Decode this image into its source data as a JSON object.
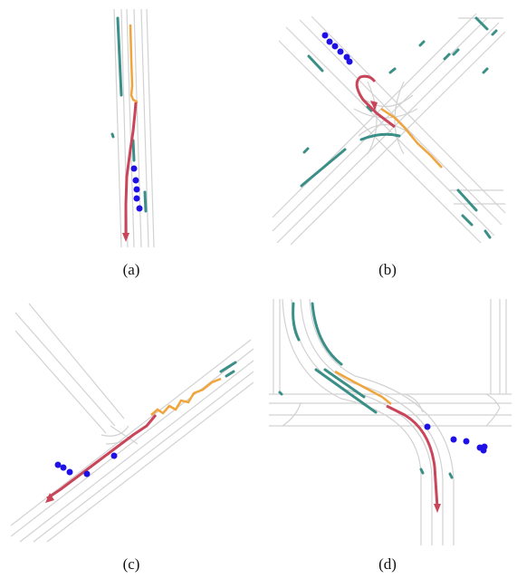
{
  "panels": [
    {
      "id": "a",
      "caption": "(a)"
    },
    {
      "id": "b",
      "caption": "(b)"
    },
    {
      "id": "c",
      "caption": "(c)"
    },
    {
      "id": "d",
      "caption": "(d)"
    }
  ],
  "colors": {
    "road": "#cfcfcf",
    "agent_track": "#3a8f87",
    "history_path": "#f0a53c",
    "predicted_path": "#c9455a",
    "pedestrian": "#1f10e6"
  }
}
